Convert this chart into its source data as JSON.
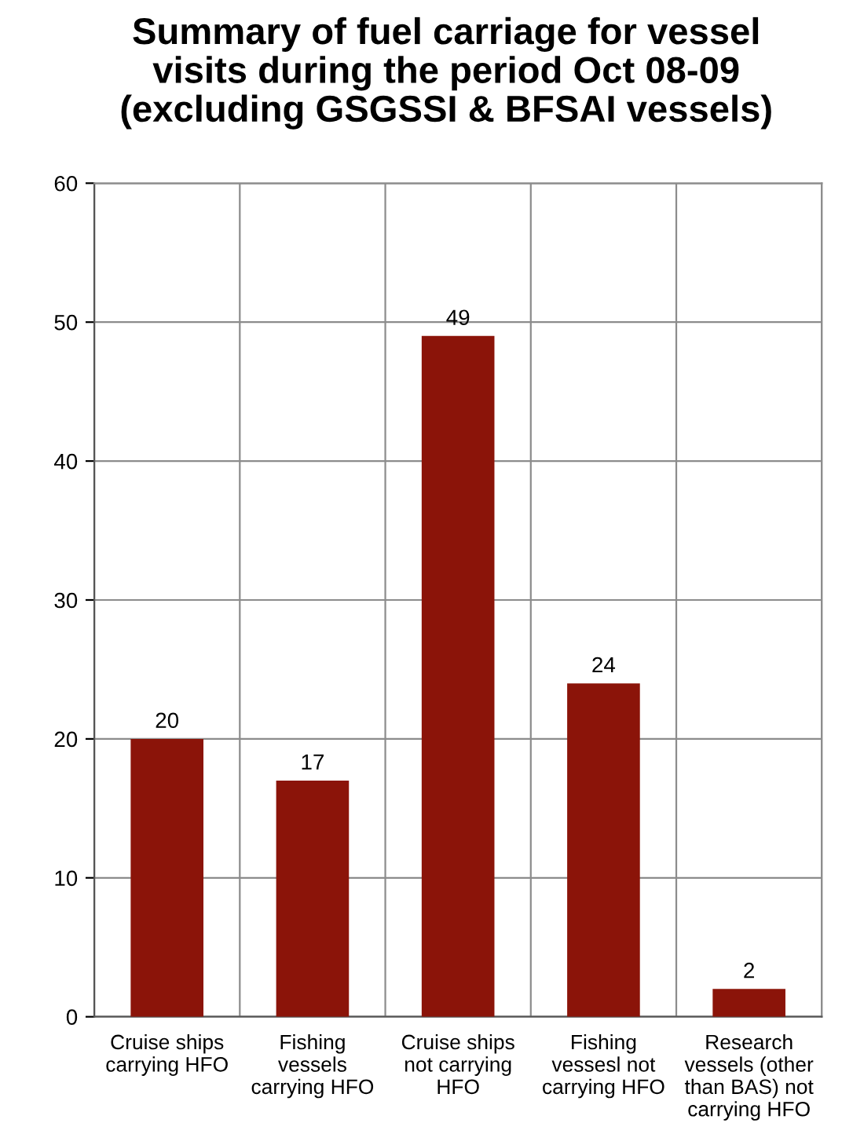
{
  "chart_data": {
    "type": "bar",
    "title": "Summary of fuel carriage for vessel\nvisits during the period Oct 08-09\n(excluding GSGSSI & BFSAI vessels)",
    "categories": [
      "Cruise ships\ncarrying HFO",
      "Fishing\nvessels\ncarrying HFO",
      "Cruise ships\nnot carrying\nHFO",
      "Fishing\nvessesl not\ncarrying HFO",
      "Research\nvessels (other\nthan BAS) not\ncarrying HFO"
    ],
    "values": [
      20,
      17,
      49,
      24,
      2
    ],
    "color": "#8b1409",
    "ylim": [
      0,
      60
    ],
    "yticks": [
      0,
      10,
      20,
      30,
      40,
      50,
      60
    ],
    "grid": true,
    "data_labels": true
  }
}
